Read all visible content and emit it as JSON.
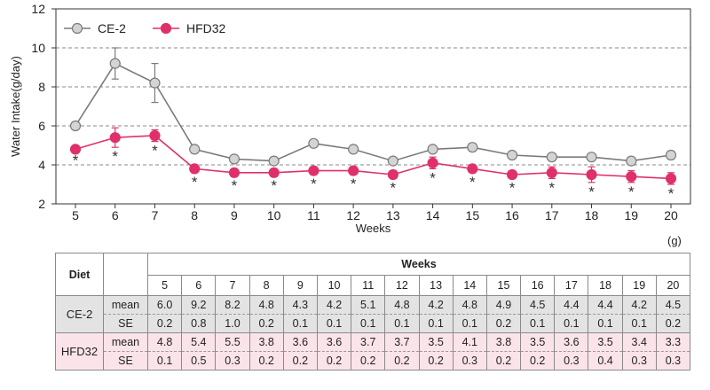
{
  "chart_data": {
    "type": "line",
    "xlabel": "Weeks",
    "ylabel": "Water Intake(g/day)",
    "x": [
      5,
      6,
      7,
      8,
      9,
      10,
      11,
      12,
      13,
      14,
      15,
      16,
      17,
      18,
      19,
      20
    ],
    "ylim": [
      2,
      12
    ],
    "yticks": [
      2,
      4,
      6,
      8,
      10,
      12
    ],
    "grid": "horizontal-dashed",
    "legend": "top-left",
    "series": [
      {
        "name": "CE-2",
        "color": "#7a7a7a",
        "marker_color": "#d4d4d4",
        "values": [
          6.0,
          9.2,
          8.2,
          4.8,
          4.3,
          4.2,
          5.1,
          4.8,
          4.2,
          4.8,
          4.9,
          4.5,
          4.4,
          4.4,
          4.2,
          4.5
        ],
        "se": [
          0.2,
          0.8,
          1.0,
          0.2,
          0.1,
          0.1,
          0.1,
          0.1,
          0.1,
          0.1,
          0.2,
          0.1,
          0.1,
          0.1,
          0.1,
          0.2
        ]
      },
      {
        "name": "HFD32",
        "color": "#e0306a",
        "marker_color": "#e0306a",
        "values": [
          4.8,
          5.4,
          5.5,
          3.8,
          3.6,
          3.6,
          3.7,
          3.7,
          3.5,
          4.1,
          3.8,
          3.5,
          3.6,
          3.5,
          3.4,
          3.3
        ],
        "se": [
          0.1,
          0.5,
          0.3,
          0.2,
          0.2,
          0.2,
          0.2,
          0.2,
          0.2,
          0.3,
          0.2,
          0.2,
          0.3,
          0.4,
          0.3,
          0.3
        ]
      }
    ],
    "annotations": {
      "marker": "*",
      "weeks": [
        5,
        6,
        7,
        8,
        9,
        10,
        11,
        12,
        13,
        14,
        15,
        16,
        17,
        18,
        19,
        20
      ]
    }
  },
  "table": {
    "unit": "(g)",
    "diet_header": "Diet",
    "weeks_header": "Weeks",
    "weeks": [
      "5",
      "6",
      "7",
      "8",
      "9",
      "10",
      "11",
      "12",
      "13",
      "14",
      "15",
      "16",
      "17",
      "18",
      "19",
      "20"
    ],
    "groups": [
      {
        "name": "CE-2",
        "rows": [
          {
            "stat": "mean",
            "values": [
              "6.0",
              "9.2",
              "8.2",
              "4.8",
              "4.3",
              "4.2",
              "5.1",
              "4.8",
              "4.2",
              "4.8",
              "4.9",
              "4.5",
              "4.4",
              "4.4",
              "4.2",
              "4.5"
            ]
          },
          {
            "stat": "SE",
            "values": [
              "0.2",
              "0.8",
              "1.0",
              "0.2",
              "0.1",
              "0.1",
              "0.1",
              "0.1",
              "0.1",
              "0.1",
              "0.2",
              "0.1",
              "0.1",
              "0.1",
              "0.1",
              "0.2"
            ]
          }
        ]
      },
      {
        "name": "HFD32",
        "rows": [
          {
            "stat": "mean",
            "values": [
              "4.8",
              "5.4",
              "5.5",
              "3.8",
              "3.6",
              "3.6",
              "3.7",
              "3.7",
              "3.5",
              "4.1",
              "3.8",
              "3.5",
              "3.6",
              "3.5",
              "3.4",
              "3.3"
            ]
          },
          {
            "stat": "SE",
            "values": [
              "0.1",
              "0.5",
              "0.3",
              "0.2",
              "0.2",
              "0.2",
              "0.2",
              "0.2",
              "0.2",
              "0.3",
              "0.2",
              "0.2",
              "0.3",
              "0.4",
              "0.3",
              "0.3"
            ]
          }
        ]
      }
    ]
  }
}
